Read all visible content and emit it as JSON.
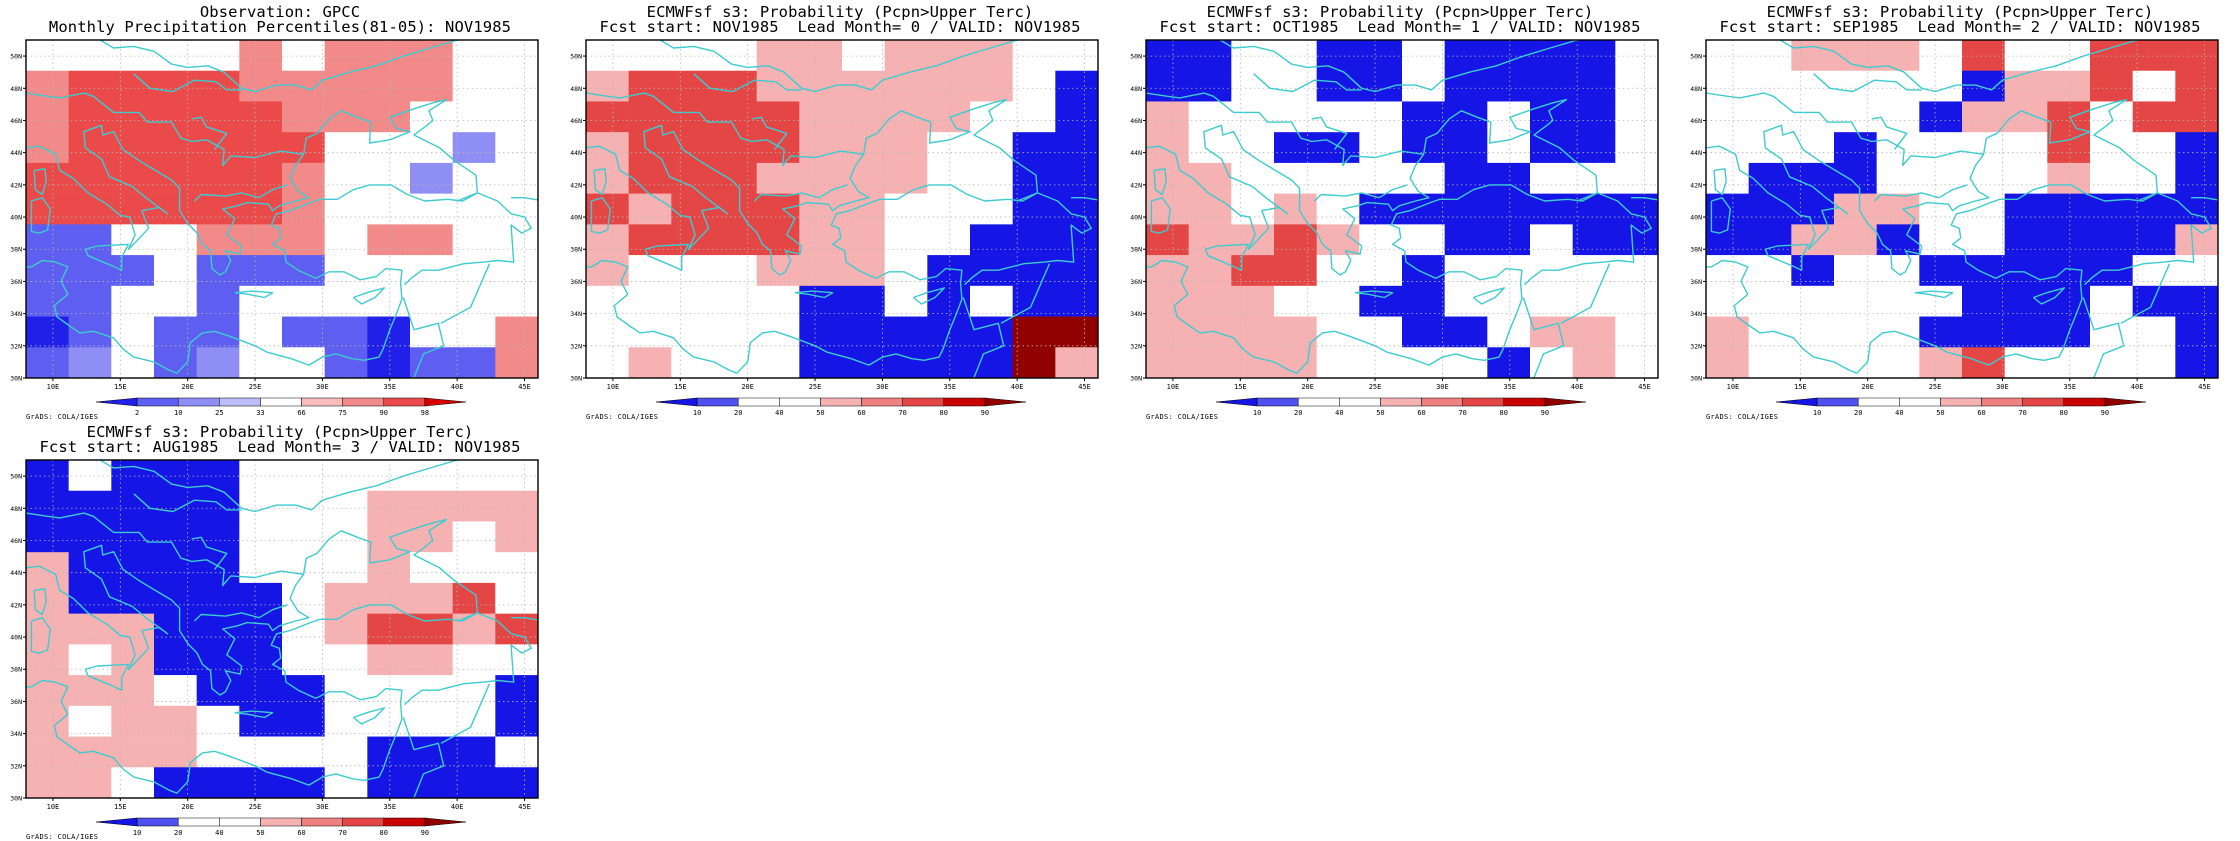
{
  "map_ticks": {
    "lon": [
      "10E",
      "15E",
      "20E",
      "25E",
      "30E",
      "35E",
      "40E",
      "45E"
    ],
    "lat": [
      "30N",
      "32N",
      "34N",
      "36N",
      "38N",
      "40N",
      "42N",
      "44N",
      "46N",
      "48N",
      "50N"
    ]
  },
  "credit": "GrADS: COLA/IGES",
  "colors": {
    "coast": "#3ecbd0",
    "obs_scale": [
      "#2020e8",
      "#5e5ef0",
      "#8e8ef4",
      "#bcbcf8",
      "#ffffff",
      "#f8bcbc",
      "#f28a8a",
      "#ea4a4a",
      "#d80000"
    ],
    "fc_scale": [
      "#1515e6",
      "#5050ee",
      "#ffffff",
      "#ffffff",
      "#f6b2b2",
      "#ee8080",
      "#e44646",
      "#c80000",
      "#900000"
    ]
  },
  "panels": [
    {
      "id": "obs",
      "title1": "Observation: GPCC",
      "title2": "Monthly Precipitation Percentiles(81-05): NOV1985",
      "colorbar_labels": [
        "2",
        "10",
        "25",
        "33",
        "66",
        "75",
        "90",
        "98"
      ],
      "scale": "obs",
      "grid": [
        "wwwwwr rrr  ",
        "rRRRRrrrrr w",
        "rRRRRRrrr  w",
        "rRRRRRR  wl ",
        "RRRRRRr  l w",
        "RRRRRRrw   w",
        "bbwwrrr rrw ",
        "bbbwbbb  w  ",
        "bbw b   w w ",
        "BbwbbwbbBw r",
        "bl bl  bBbbr"
      ]
    },
    {
      "id": "lead0",
      "title1": "ECMWFsf s3: Probability (Pcpn>Upper Terc)",
      "title2": "Fcst start: NOV1985  Lead Month= 0 / VALID: NOV1985",
      "colorbar_labels": [
        "10",
        "20",
        "40",
        "50",
        "60",
        "70",
        "80",
        "90"
      ],
      "scale": "fc",
      "grid": [
        "    rr rrr  ",
        "rRRRrrrrrr B",
        "RRRRRrrrr  B",
        "rRRRRrrr  BB",
        "rRRRrrrr  BB",
        "RrRRRrr   BB",
        "rRRRRrr  BBB",
        "r   rrr BBBB",
        "     BB B BB",
        "     BBBBBXX",
        " r   BBBBBXr"
      ]
    },
    {
      "id": "lead1",
      "title1": "ECMWFsf s3: Probability (Pcpn>Upper Terc)",
      "title2": "Fcst start: OCT1985  Lead Month= 1 / VALID: NOV1985",
      "colorbar_labels": [
        "10",
        "20",
        "40",
        "50",
        "60",
        "70",
        "80",
        "90"
      ],
      "scale": "fc",
      "grid": [
        "BB  BB BBBB ",
        "BB  BB BBBB ",
        "r     BB BB ",
        "r  BB BB BB ",
        "rr     BB   ",
        "rr r BBBBBBB",
        "RrrRr  BB BB",
        "rrRR  B     ",
        "rrr  BB     ",
        "rrrr  BB rr ",
        "rrrr    B r "
      ]
    },
    {
      "id": "lead2",
      "title1": "ECMWFsf s3: Probability (Pcpn>Upper Terc)",
      "title2": "Fcst start: SEP1985  Lead Month= 2 / VALID: NOV1985",
      "colorbar_labels": [
        "10",
        "20",
        "40",
        "50",
        "60",
        "70",
        "80",
        "90"
      ],
      "scale": "fc",
      "grid": [
        "  rrr R  RRR",
        "      BrrR R",
        "     BrrR RR",
        "   B    R  B",
        " BBB    r  B",
        "BBBrr  BBBBB",
        "BBrrB  BBBBr",
        "  B  BBBBB  ",
        "      BBB BB",
        "r    BBBB  B",
        "r    rR    B"
      ]
    },
    {
      "id": "lead3",
      "title1": "ECMWFsf s3: Probability (Pcpn>Upper Terc)",
      "title2": "Fcst start: AUG1985  Lead Month= 3 / VALID: NOV1985",
      "colorbar_labels": [
        "10",
        "20",
        "40",
        "50",
        "60",
        "70",
        "80",
        "90"
      ],
      "scale": "fc",
      "grid": [
        "B BBB       ",
        "BBBBB   rrrr",
        "BBBBB   rr r",
        "rBBBB   r   ",
        "rBBBBB rrrR ",
        "rrrBBB rRRrR",
        "r rBBB  rr  ",
        "rrr BBB    B",
        "r rr BB    B",
        "rrrr    BBB ",
        "rr BBBB BBBB"
      ]
    }
  ]
}
